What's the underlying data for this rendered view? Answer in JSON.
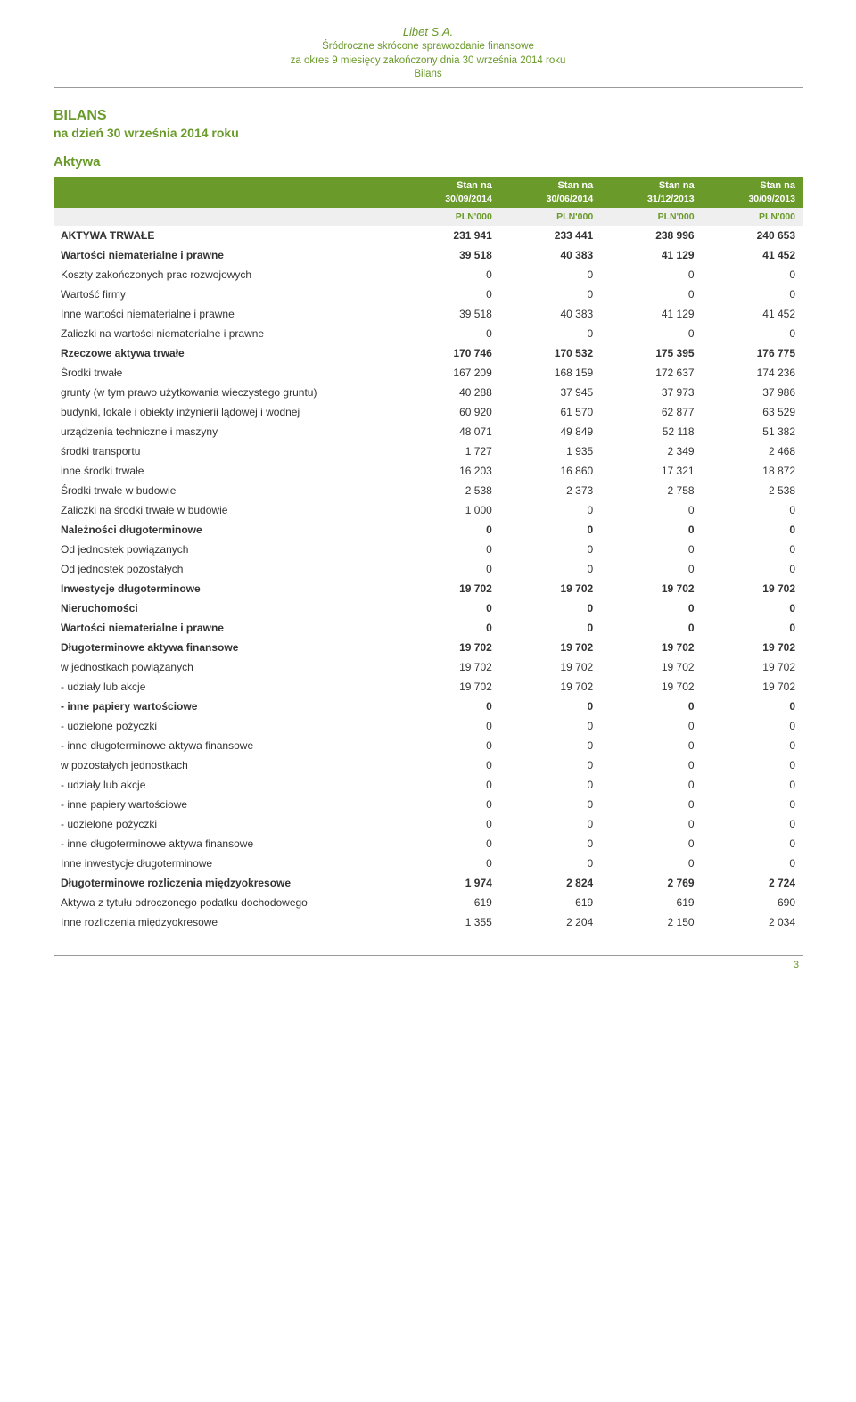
{
  "doc": {
    "title": "Libet S.A.",
    "sub1": "Śródroczne skrócone sprawozdanie finansowe",
    "sub2": "za okres 9 miesięcy zakończony dnia 30 września 2014 roku",
    "sub3": "Bilans"
  },
  "section": {
    "head": "BILANS",
    "sub": "na dzień 30 września 2014 roku"
  },
  "table": {
    "title": "Aktywa",
    "head_top": [
      "Stan na",
      "Stan na",
      "Stan na",
      "Stan na"
    ],
    "head_bot": [
      "30/09/2014",
      "30/06/2014",
      "31/12/2013",
      "30/09/2013"
    ],
    "units": [
      "PLN'000",
      "PLN'000",
      "PLN'000",
      "PLN'000"
    ],
    "rows": [
      {
        "label": "AKTYWA TRWAŁE",
        "v": [
          "231 941",
          "233 441",
          "238 996",
          "240 653"
        ],
        "bold": true
      },
      {
        "label": "Wartości niematerialne i prawne",
        "v": [
          "39 518",
          "40 383",
          "41 129",
          "41 452"
        ],
        "bold": true
      },
      {
        "label": "Koszty zakończonych prac rozwojowych",
        "v": [
          "0",
          "0",
          "0",
          "0"
        ]
      },
      {
        "label": "Wartość firmy",
        "v": [
          "0",
          "0",
          "0",
          "0"
        ]
      },
      {
        "label": "Inne wartości niematerialne i prawne",
        "v": [
          "39 518",
          "40 383",
          "41 129",
          "41 452"
        ]
      },
      {
        "label": "Zaliczki na wartości niematerialne i prawne",
        "v": [
          "0",
          "0",
          "0",
          "0"
        ]
      },
      {
        "label": "Rzeczowe aktywa trwałe",
        "v": [
          "170 746",
          "170 532",
          "175 395",
          "176 775"
        ],
        "bold": true
      },
      {
        "label": "Środki trwałe",
        "v": [
          "167 209",
          "168 159",
          "172 637",
          "174 236"
        ]
      },
      {
        "label": "grunty (w tym prawo użytkowania wieczystego gruntu)",
        "v": [
          "40 288",
          "37 945",
          "37 973",
          "37 986"
        ]
      },
      {
        "label": "budynki, lokale i obiekty inżynierii lądowej i wodnej",
        "v": [
          "60 920",
          "61 570",
          "62 877",
          "63 529"
        ]
      },
      {
        "label": "urządzenia techniczne i maszyny",
        "v": [
          "48 071",
          "49 849",
          "52 118",
          "51 382"
        ]
      },
      {
        "label": "środki transportu",
        "v": [
          "1 727",
          "1 935",
          "2 349",
          "2 468"
        ]
      },
      {
        "label": "inne środki trwałe",
        "v": [
          "16 203",
          "16 860",
          "17 321",
          "18 872"
        ]
      },
      {
        "label": "Środki trwałe w budowie",
        "v": [
          "2 538",
          "2 373",
          "2 758",
          "2 538"
        ]
      },
      {
        "label": "Zaliczki na środki trwałe w budowie",
        "v": [
          "1 000",
          "0",
          "0",
          "0"
        ]
      },
      {
        "label": "Należności długoterminowe",
        "v": [
          "0",
          "0",
          "0",
          "0"
        ],
        "bold": true
      },
      {
        "label": "Od jednostek powiązanych",
        "v": [
          "0",
          "0",
          "0",
          "0"
        ]
      },
      {
        "label": "Od jednostek pozostałych",
        "v": [
          "0",
          "0",
          "0",
          "0"
        ]
      },
      {
        "label": "Inwestycje długoterminowe",
        "v": [
          "19 702",
          "19 702",
          "19 702",
          "19 702"
        ],
        "bold": true
      },
      {
        "label": "Nieruchomości",
        "v": [
          "0",
          "0",
          "0",
          "0"
        ],
        "bold": true
      },
      {
        "label": "Wartości niematerialne i prawne",
        "v": [
          "0",
          "0",
          "0",
          "0"
        ],
        "bold": true
      },
      {
        "label": "Długoterminowe aktywa finansowe",
        "v": [
          "19 702",
          "19 702",
          "19 702",
          "19 702"
        ],
        "bold": true
      },
      {
        "label": "w jednostkach powiązanych",
        "v": [
          "19 702",
          "19 702",
          "19 702",
          "19 702"
        ]
      },
      {
        "label": "- udziały lub akcje",
        "v": [
          "19 702",
          "19 702",
          "19 702",
          "19 702"
        ]
      },
      {
        "label": "- inne papiery wartościowe",
        "v": [
          "0",
          "0",
          "0",
          "0"
        ],
        "bold": true
      },
      {
        "label": "- udzielone pożyczki",
        "v": [
          "0",
          "0",
          "0",
          "0"
        ]
      },
      {
        "label": "- inne długoterminowe aktywa finansowe",
        "v": [
          "0",
          "0",
          "0",
          "0"
        ]
      },
      {
        "label": "w pozostałych jednostkach",
        "v": [
          "0",
          "0",
          "0",
          "0"
        ]
      },
      {
        "label": "- udziały lub akcje",
        "v": [
          "0",
          "0",
          "0",
          "0"
        ]
      },
      {
        "label": "- inne papiery wartościowe",
        "v": [
          "0",
          "0",
          "0",
          "0"
        ]
      },
      {
        "label": "- udzielone pożyczki",
        "v": [
          "0",
          "0",
          "0",
          "0"
        ]
      },
      {
        "label": "- inne długoterminowe aktywa finansowe",
        "v": [
          "0",
          "0",
          "0",
          "0"
        ]
      },
      {
        "label": "Inne inwestycje długoterminowe",
        "v": [
          "0",
          "0",
          "0",
          "0"
        ]
      },
      {
        "label": "Długoterminowe rozliczenia międzyokresowe",
        "v": [
          "1 974",
          "2 824",
          "2 769",
          "2 724"
        ],
        "bold": true
      },
      {
        "label": "Aktywa z tytułu odroczonego podatku dochodowego",
        "v": [
          "619",
          "619",
          "619",
          "690"
        ]
      },
      {
        "label": "Inne rozliczenia międzyokresowe",
        "v": [
          "1 355",
          "2 204",
          "2 150",
          "2 034"
        ]
      }
    ]
  },
  "page_number": "3"
}
